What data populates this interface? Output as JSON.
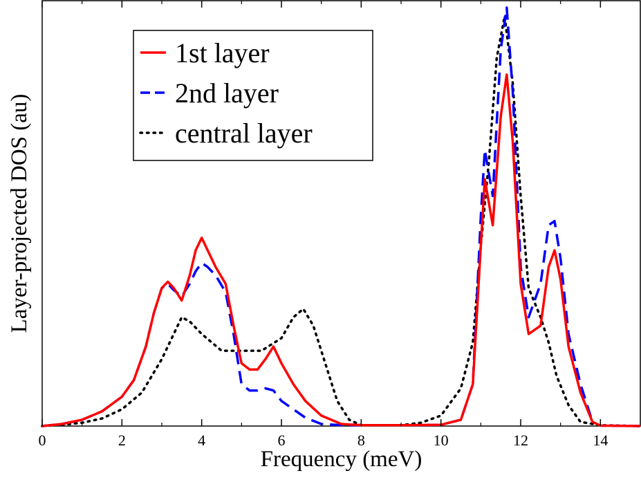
{
  "chart_data": {
    "type": "line",
    "title": "",
    "xlabel": "Frequency (meV)",
    "ylabel": "Layer-projected DOS (au)",
    "xlim": [
      0,
      15
    ],
    "ylim": [
      0,
      1.0
    ],
    "x_ticks": [
      0,
      2,
      4,
      6,
      8,
      10,
      12,
      14
    ],
    "x_tick_labels": [
      "0",
      "2",
      "4",
      "6",
      "8",
      "10",
      "12",
      "14"
    ],
    "y_tick_labels_shown": false,
    "grid": false,
    "legend_position": "top-left",
    "series": [
      {
        "name": "1st layer",
        "color": "#ff0000",
        "style": "solid",
        "points": [
          [
            0,
            0
          ],
          [
            0.5,
            0.005
          ],
          [
            1.0,
            0.015
          ],
          [
            1.5,
            0.035
          ],
          [
            2.0,
            0.07
          ],
          [
            2.3,
            0.11
          ],
          [
            2.6,
            0.19
          ],
          [
            2.8,
            0.27
          ],
          [
            3.0,
            0.33
          ],
          [
            3.15,
            0.345
          ],
          [
            3.3,
            0.33
          ],
          [
            3.5,
            0.3
          ],
          [
            3.7,
            0.36
          ],
          [
            3.85,
            0.42
          ],
          [
            4.0,
            0.45
          ],
          [
            4.15,
            0.42
          ],
          [
            4.35,
            0.38
          ],
          [
            4.6,
            0.34
          ],
          [
            4.8,
            0.24
          ],
          [
            5.0,
            0.15
          ],
          [
            5.2,
            0.135
          ],
          [
            5.4,
            0.135
          ],
          [
            5.6,
            0.16
          ],
          [
            5.8,
            0.19
          ],
          [
            6.0,
            0.15
          ],
          [
            6.3,
            0.1
          ],
          [
            6.6,
            0.06
          ],
          [
            7.0,
            0.025
          ],
          [
            7.5,
            0.005
          ],
          [
            8.0,
            0.002
          ],
          [
            9.0,
            0.002
          ],
          [
            10.0,
            0.003
          ],
          [
            10.5,
            0.015
          ],
          [
            10.8,
            0.1
          ],
          [
            11.0,
            0.43
          ],
          [
            11.1,
            0.59
          ],
          [
            11.3,
            0.48
          ],
          [
            11.5,
            0.74
          ],
          [
            11.65,
            0.84
          ],
          [
            11.8,
            0.68
          ],
          [
            12.0,
            0.34
          ],
          [
            12.2,
            0.22
          ],
          [
            12.5,
            0.24
          ],
          [
            12.7,
            0.38
          ],
          [
            12.85,
            0.42
          ],
          [
            13.0,
            0.35
          ],
          [
            13.2,
            0.19
          ],
          [
            13.5,
            0.08
          ],
          [
            13.8,
            0.01
          ],
          [
            14.0,
            0.001
          ],
          [
            15.0,
            0
          ]
        ]
      },
      {
        "name": "2nd layer",
        "color": "#0000ff",
        "style": "dashed",
        "points": [
          [
            0,
            0
          ],
          [
            0.5,
            0.005
          ],
          [
            1.0,
            0.015
          ],
          [
            1.5,
            0.035
          ],
          [
            2.0,
            0.07
          ],
          [
            2.3,
            0.11
          ],
          [
            2.6,
            0.19
          ],
          [
            2.8,
            0.27
          ],
          [
            3.0,
            0.33
          ],
          [
            3.15,
            0.34
          ],
          [
            3.3,
            0.325
          ],
          [
            3.5,
            0.31
          ],
          [
            3.7,
            0.34
          ],
          [
            3.85,
            0.37
          ],
          [
            4.0,
            0.39
          ],
          [
            4.15,
            0.38
          ],
          [
            4.35,
            0.36
          ],
          [
            4.6,
            0.32
          ],
          [
            4.8,
            0.22
          ],
          [
            5.0,
            0.1
          ],
          [
            5.2,
            0.085
          ],
          [
            5.4,
            0.085
          ],
          [
            5.6,
            0.09
          ],
          [
            5.8,
            0.085
          ],
          [
            6.0,
            0.06
          ],
          [
            6.3,
            0.04
          ],
          [
            6.6,
            0.02
          ],
          [
            7.0,
            0.005
          ],
          [
            7.5,
            0.002
          ],
          [
            8.0,
            0.002
          ],
          [
            9.0,
            0.002
          ],
          [
            10.0,
            0.003
          ],
          [
            10.5,
            0.015
          ],
          [
            10.8,
            0.1
          ],
          [
            11.0,
            0.5
          ],
          [
            11.1,
            0.66
          ],
          [
            11.3,
            0.55
          ],
          [
            11.5,
            0.9
          ],
          [
            11.65,
            1.0
          ],
          [
            11.8,
            0.8
          ],
          [
            12.0,
            0.38
          ],
          [
            12.2,
            0.26
          ],
          [
            12.5,
            0.34
          ],
          [
            12.7,
            0.48
          ],
          [
            12.85,
            0.49
          ],
          [
            13.0,
            0.4
          ],
          [
            13.2,
            0.22
          ],
          [
            13.5,
            0.1
          ],
          [
            13.8,
            0.01
          ],
          [
            14.0,
            0.001
          ],
          [
            15.0,
            0
          ]
        ]
      },
      {
        "name": "central layer",
        "color": "#000000",
        "style": "dotted",
        "points": [
          [
            0,
            0
          ],
          [
            0.5,
            0.003
          ],
          [
            1.0,
            0.008
          ],
          [
            1.5,
            0.018
          ],
          [
            2.0,
            0.04
          ],
          [
            2.5,
            0.08
          ],
          [
            3.0,
            0.16
          ],
          [
            3.3,
            0.22
          ],
          [
            3.5,
            0.26
          ],
          [
            3.7,
            0.25
          ],
          [
            4.0,
            0.22
          ],
          [
            4.5,
            0.18
          ],
          [
            5.0,
            0.18
          ],
          [
            5.5,
            0.18
          ],
          [
            6.0,
            0.21
          ],
          [
            6.3,
            0.26
          ],
          [
            6.55,
            0.28
          ],
          [
            6.8,
            0.24
          ],
          [
            7.1,
            0.15
          ],
          [
            7.4,
            0.06
          ],
          [
            7.7,
            0.015
          ],
          [
            8.0,
            0.002
          ],
          [
            9.0,
            0.002
          ],
          [
            9.5,
            0.008
          ],
          [
            10.0,
            0.025
          ],
          [
            10.5,
            0.09
          ],
          [
            10.8,
            0.2
          ],
          [
            11.0,
            0.43
          ],
          [
            11.2,
            0.63
          ],
          [
            11.4,
            0.88
          ],
          [
            11.6,
            0.98
          ],
          [
            11.8,
            0.82
          ],
          [
            12.0,
            0.55
          ],
          [
            12.2,
            0.33
          ],
          [
            12.5,
            0.26
          ],
          [
            12.7,
            0.2
          ],
          [
            12.9,
            0.12
          ],
          [
            13.2,
            0.05
          ],
          [
            13.5,
            0.01
          ],
          [
            14.0,
            0.002
          ],
          [
            15.0,
            0
          ]
        ]
      }
    ]
  }
}
